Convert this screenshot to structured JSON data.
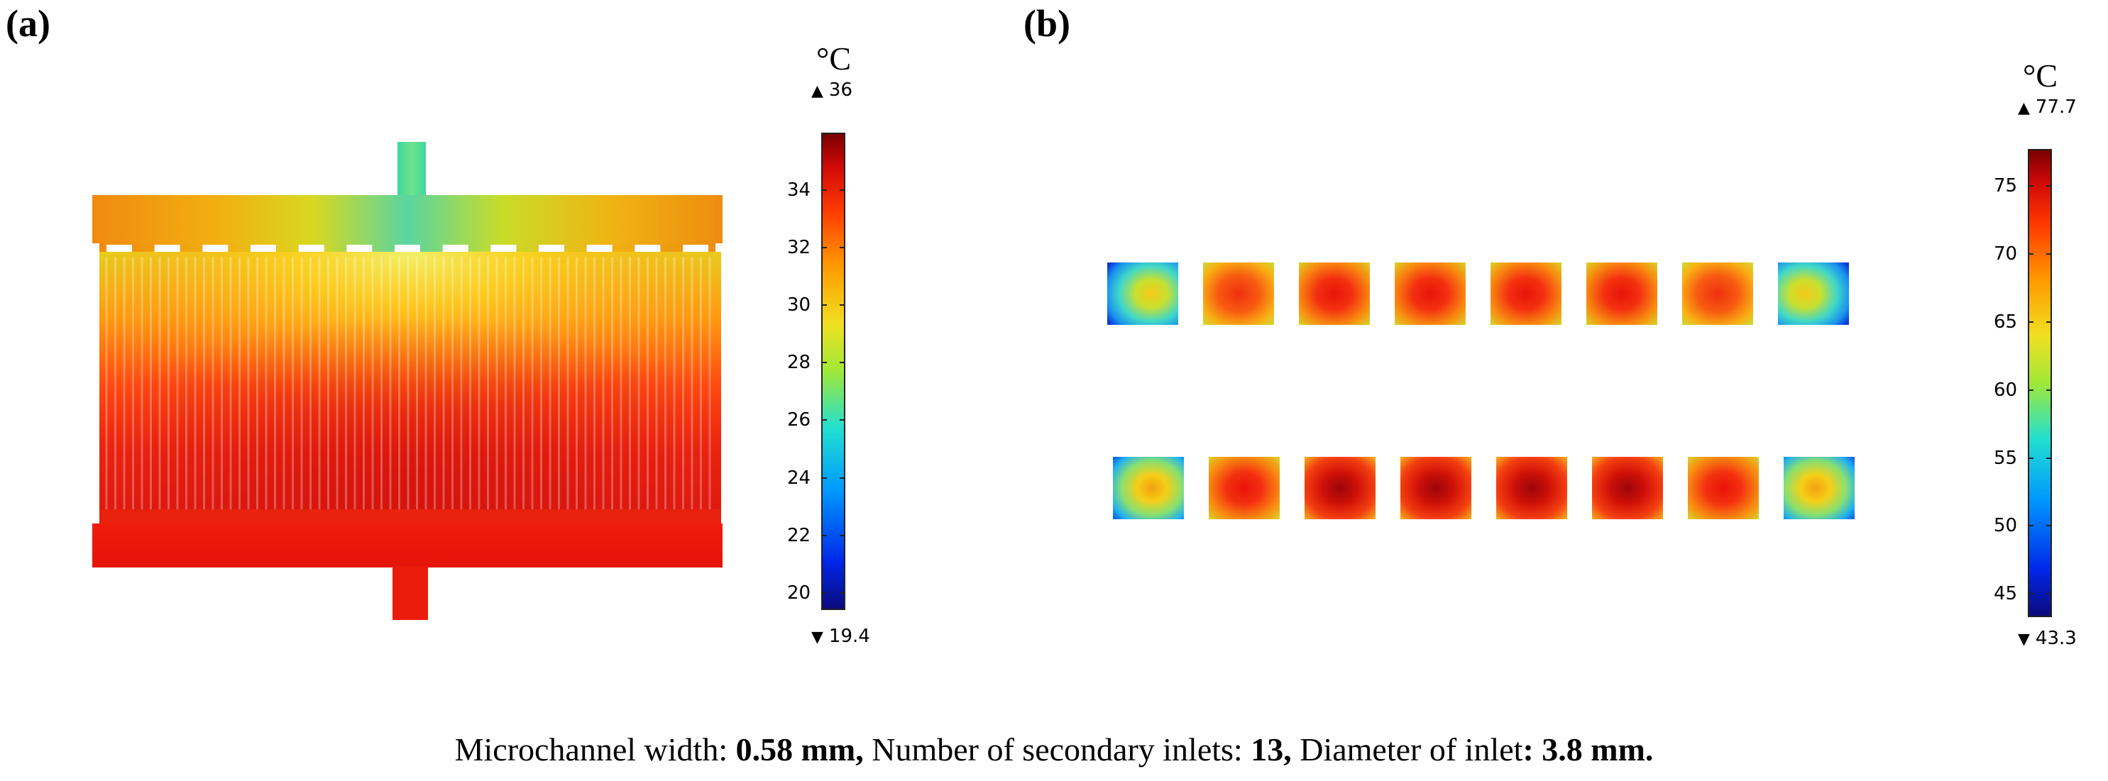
{
  "panel_a": {
    "label": "(a)",
    "unit": "°C",
    "max_label": "36",
    "min_label": "19.4",
    "ticks": [
      "34",
      "32",
      "30",
      "28",
      "26",
      "24",
      "22",
      "20"
    ],
    "tick_values": [
      34,
      32,
      30,
      28,
      26,
      24,
      22,
      20
    ],
    "range": [
      19.4,
      36
    ]
  },
  "panel_b": {
    "label": "(b)",
    "unit": "°C",
    "max_label": "77.7",
    "min_label": "43.3",
    "ticks": [
      "75",
      "70",
      "65",
      "60",
      "55",
      "50",
      "45"
    ],
    "tick_values": [
      75,
      70,
      65,
      60,
      55,
      50,
      45
    ],
    "range": [
      43.3,
      77.7
    ],
    "row_count": 2,
    "cells_per_row": 8
  },
  "colors": {
    "jet": [
      "#0a0a78",
      "#0033ff",
      "#00b4ff",
      "#2fe0c0",
      "#c8e62a",
      "#ffd800",
      "#ff8a00",
      "#ff2a00",
      "#c00000",
      "#7a0000"
    ]
  },
  "caption": {
    "p1": "Microchannel width: ",
    "b1": "0.58 mm,",
    "p2": " Number of secondary inlets: ",
    "b2": "13,",
    "p3": " Diameter of inlet",
    "b3": ": 3.8 mm."
  }
}
